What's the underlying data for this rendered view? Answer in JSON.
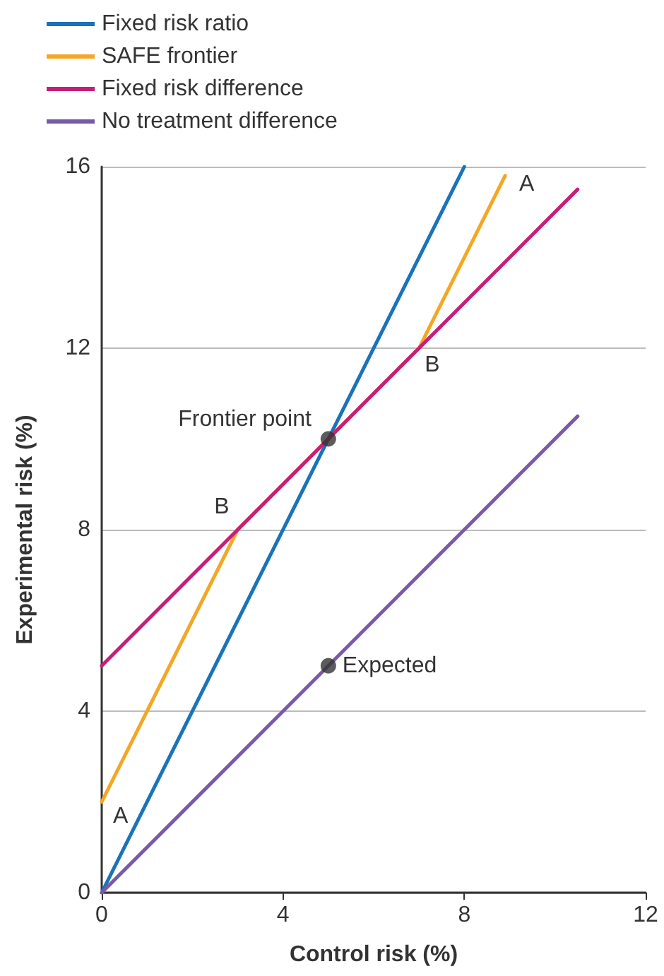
{
  "chart_data": {
    "type": "line",
    "xlabel": "Control risk (%)",
    "ylabel": "Experimental risk (%)",
    "xlim": [
      0,
      12
    ],
    "ylim": [
      0,
      16
    ],
    "xticks": [
      0,
      4,
      8,
      12
    ],
    "yticks": [
      0,
      4,
      8,
      12,
      16
    ],
    "grid": "y",
    "legend": "top left",
    "marker": "none",
    "line_style": "solid",
    "series": [
      {
        "name": "Fixed risk ratio",
        "color": "#1a73ba",
        "x": [
          0,
          8
        ],
        "values": [
          0,
          16
        ]
      },
      {
        "name": "SAFE frontier",
        "color": "#f5a623",
        "x": [
          0,
          3,
          7,
          8.9
        ],
        "values": [
          2,
          8,
          12,
          15.8
        ]
      },
      {
        "name": "Fixed risk difference",
        "color": "#c81e78",
        "x": [
          0,
          10.5
        ],
        "values": [
          5,
          15.5
        ]
      },
      {
        "name": "No treatment difference",
        "color": "#7a5aa6",
        "x": [
          0,
          10.5
        ],
        "values": [
          0,
          10.5
        ]
      },
      {
        "type": "scatter",
        "color": "#333333",
        "marker": "circle",
        "x": [
          5,
          5
        ],
        "values": [
          10,
          5
        ]
      }
    ],
    "annotations": [
      {
        "text": "A",
        "x": 0,
        "y": 2
      },
      {
        "text": "A",
        "x": 8.9,
        "y": 15.8
      },
      {
        "text": "B",
        "x": 3,
        "y": 8
      },
      {
        "text": "B",
        "x": 7,
        "y": 12
      },
      {
        "text": "Frontier point",
        "x": 5,
        "y": 10
      },
      {
        "text": "Expected",
        "x": 5,
        "y": 5
      }
    ]
  }
}
